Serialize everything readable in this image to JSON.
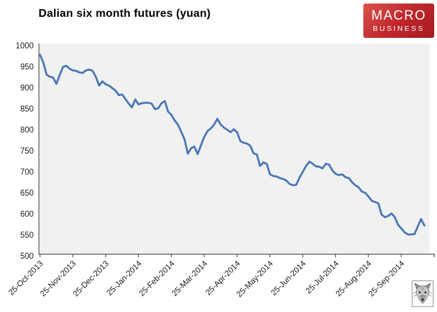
{
  "title": "Dalian six month futures (yuan)",
  "logo": {
    "line1": "MACRO",
    "line2": "BUSINESS"
  },
  "colors": {
    "logo-red": "#c1272d",
    "line-blue": "#4877b5",
    "plot-bg": "#f1f1f1",
    "axis-gray": "#595959"
  },
  "watermark": {
    "icon": "wolf-icon"
  },
  "chart_data": {
    "type": "line",
    "title": "Dalian six month futures (yuan)",
    "xlabel": "",
    "ylabel": "",
    "grid": false,
    "legend": "none",
    "ylim": [
      500,
      1000
    ],
    "y_ticks": [
      1000,
      950,
      900,
      850,
      800,
      750,
      700,
      650,
      600,
      550,
      500
    ],
    "x_tick_labels": [
      "25-Oct-2013",
      "25-Nov-2013",
      "25-Dec-2013",
      "25-Jan-2014",
      "25-Feb-2014",
      "25-Mar-2014",
      "25-Apr-2014",
      "25-May-2014",
      "25-Jun-2014",
      "25-Jul-2014",
      "25-Aug-2014",
      "25-Sep-2014"
    ],
    "series": [
      {
        "name": "Dalian six month futures (yuan)",
        "color": "#4877b5",
        "values": [
          978,
          960,
          931,
          926,
          924,
          909,
          930,
          949,
          952,
          945,
          941,
          940,
          936,
          935,
          941,
          943,
          940,
          926,
          905,
          915,
          908,
          905,
          899,
          893,
          882,
          884,
          873,
          862,
          853,
          872,
          860,
          863,
          864,
          864,
          862,
          849,
          851,
          863,
          868,
          843,
          835,
          822,
          812,
          795,
          777,
          743,
          756,
          760,
          742,
          763,
          783,
          797,
          803,
          812,
          826,
          812,
          805,
          800,
          794,
          801,
          794,
          773,
          769,
          767,
          762,
          744,
          741,
          714,
          722,
          719,
          694,
          690,
          689,
          685,
          683,
          679,
          671,
          668,
          669,
          686,
          700,
          714,
          724,
          719,
          713,
          712,
          708,
          719,
          717,
          703,
          695,
          692,
          694,
          687,
          685,
          675,
          668,
          663,
          653,
          650,
          641,
          631,
          628,
          625,
          598,
          592,
          595,
          601,
          592,
          574,
          565,
          556,
          551,
          551,
          552,
          570,
          588,
          572
        ]
      }
    ]
  }
}
